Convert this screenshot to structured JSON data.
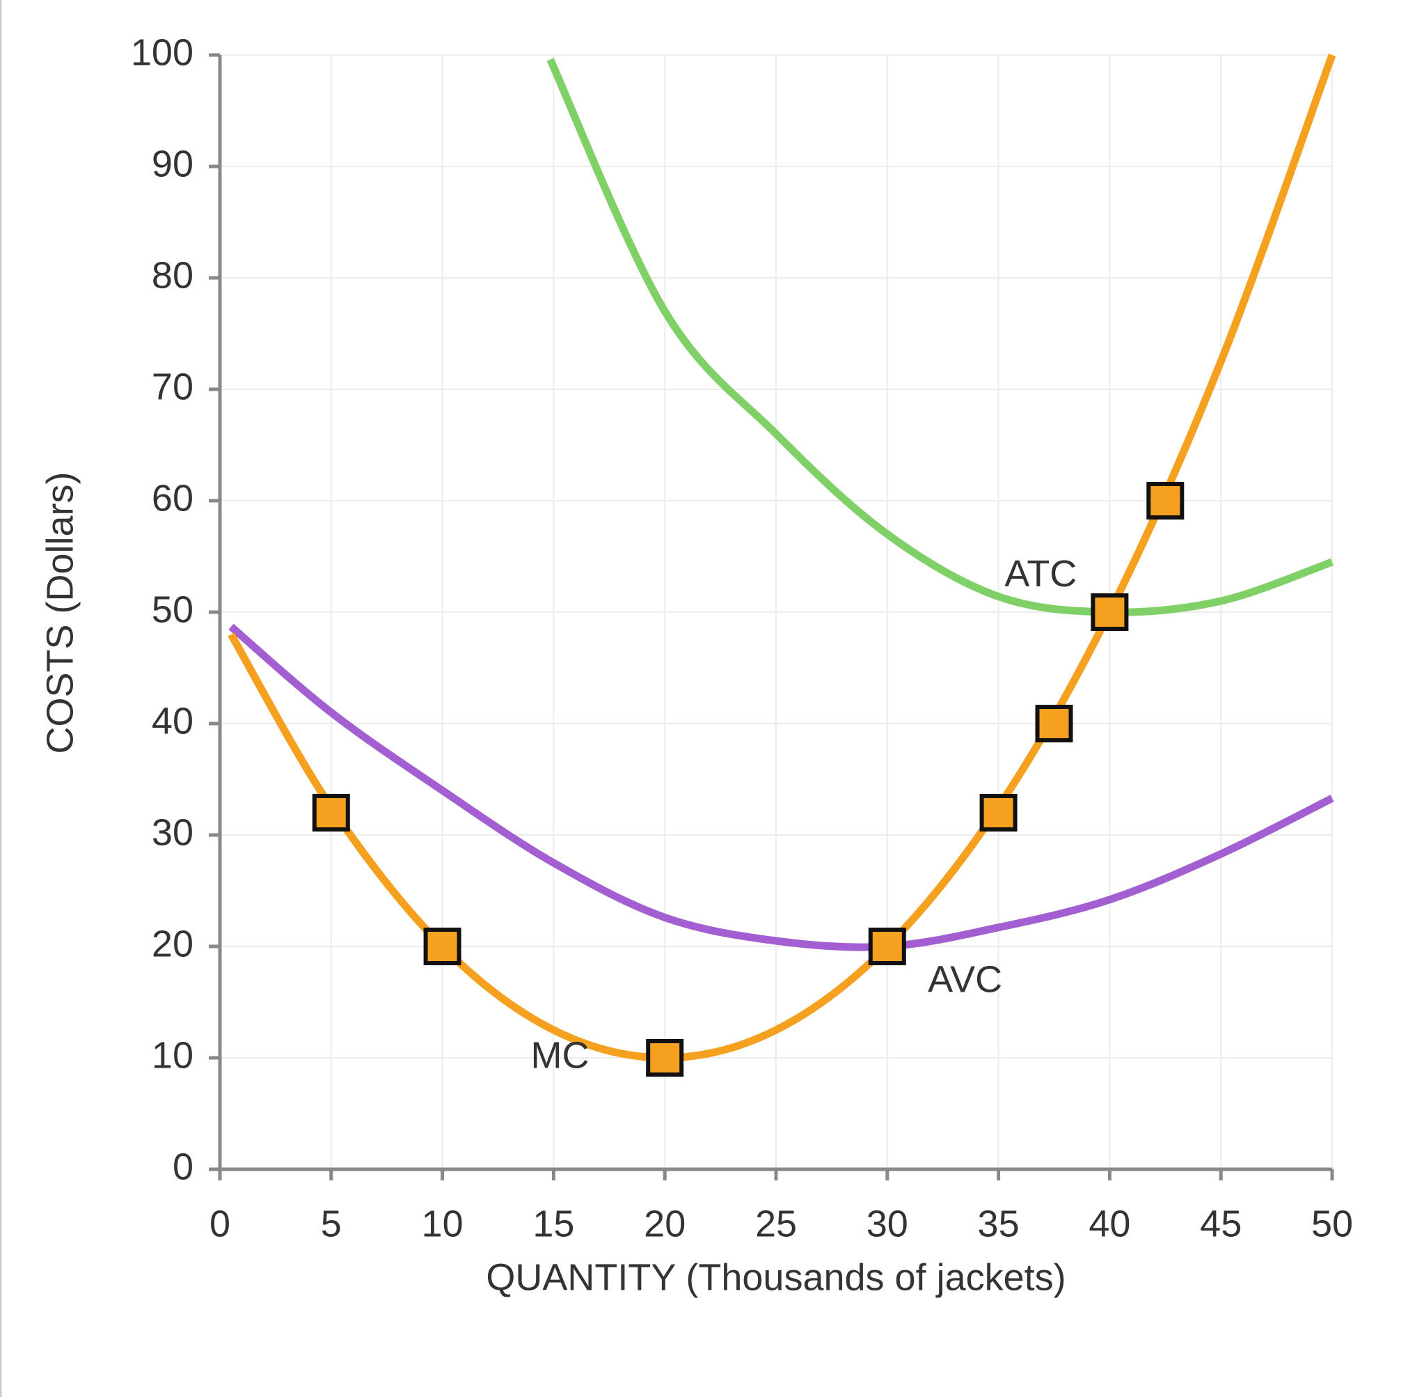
{
  "chart_data": {
    "type": "line",
    "xlabel": "QUANTITY (Thousands of jackets)",
    "ylabel": "COSTS (Dollars)",
    "xlim": [
      0,
      50
    ],
    "xticks": [
      0,
      5,
      10,
      15,
      20,
      25,
      30,
      35,
      40,
      45,
      50
    ],
    "ylim": [
      0,
      100
    ],
    "yticks": [
      0,
      10,
      20,
      30,
      40,
      50,
      60,
      70,
      80,
      90,
      100
    ],
    "grid": true,
    "series": [
      {
        "name": "MC",
        "color": "#f5a01f",
        "x": [
          0.5,
          5,
          10,
          15,
          20,
          25,
          30,
          35,
          40,
          45,
          50
        ],
        "values": [
          48,
          32.5,
          20,
          12.5,
          10,
          12.5,
          20,
          32.5,
          50,
          72.5,
          100
        ]
      },
      {
        "name": "AVC",
        "color": "#a35fd1",
        "x": [
          0.5,
          5,
          10,
          15,
          20,
          25,
          30,
          35,
          40,
          45,
          50
        ],
        "values": [
          48.7,
          41,
          34,
          27.5,
          22.6,
          20.5,
          20,
          21.7,
          24.2,
          28.3,
          33.3
        ]
      },
      {
        "name": "ATC",
        "color": "#7fd067",
        "x": [
          14.85,
          20,
          25,
          30,
          35,
          40,
          45,
          50
        ],
        "values": [
          99.6,
          77,
          66,
          57,
          51.4,
          50,
          51,
          54.5
        ]
      }
    ],
    "points": {
      "color": "#f5a01f",
      "x": [
        5,
        10,
        20,
        30,
        35,
        37.5,
        40,
        42.5
      ],
      "values": [
        32,
        20,
        10,
        20,
        32,
        40,
        50,
        60
      ]
    }
  }
}
